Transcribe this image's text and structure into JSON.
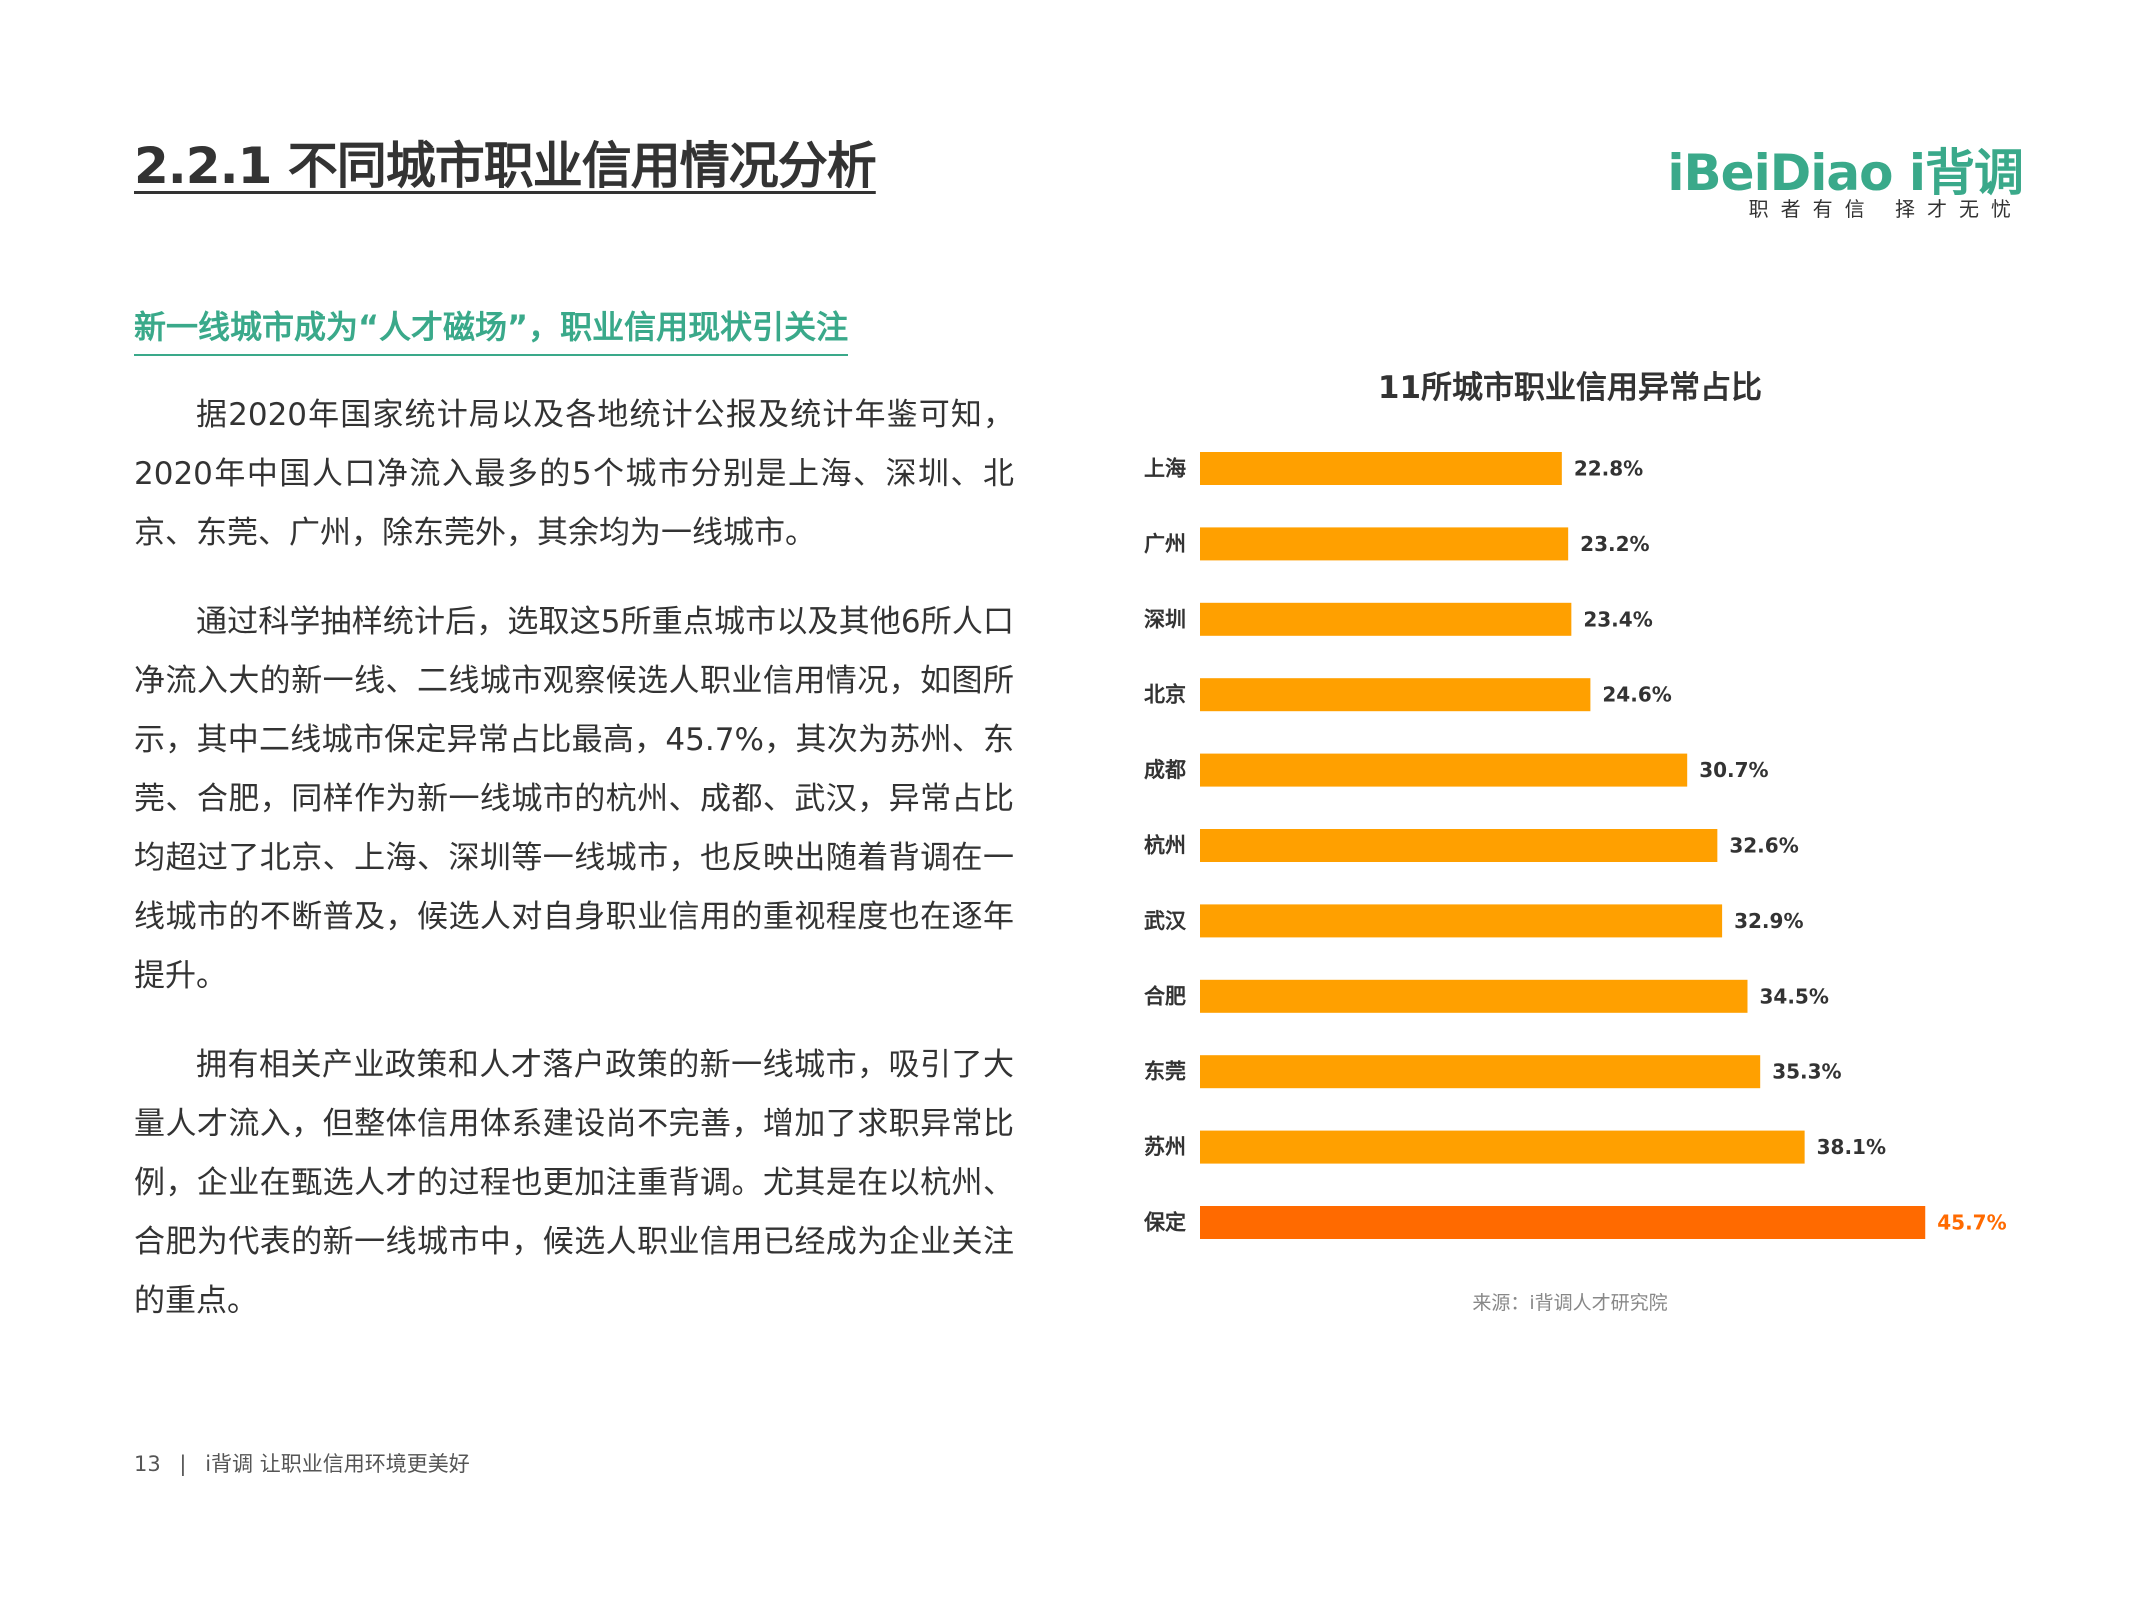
{
  "header": {
    "title": "2.2.1 不同城市职业信用情况分析",
    "logo_text": "iBeiDiao i背调",
    "logo_slogan": "职者有信 择才无忧"
  },
  "section": {
    "subtitle": "新一线城市成为“人才磁场”，职业信用现状引关注",
    "paragraphs": [
      "据2020年国家统计局以及各地统计公报及统计年鉴可知，2020年中国人口净流入最多的5个城市分别是上海、深圳、北京、东莞、广州，除东莞外，其余均为一线城市。",
      "通过科学抽样统计后，选取这5所重点城市以及其他6所人口净流入大的新一线、二线城市观察候选人职业信用情况，如图所示，其中二线城市保定异常占比最高，45.7%，其次为苏州、东莞、合肥，同样作为新一线城市的杭州、成都、武汉，异常占比均超过了北京、上海、深圳等一线城市，也反映出随着背调在一线城市的不断普及，候选人对自身职业信用的重视程度也在逐年提升。",
      "拥有相关产业政策和人才落户政策的新一线城市，吸引了大量人才流入，但整体信用体系建设尚不完善，增加了求职异常比例，企业在甄选人才的过程也更加注重背调。尤其是在以杭州、合肥为代表的新一线城市中，候选人职业信用已经成为企业关注的重点。"
    ]
  },
  "chart_data": {
    "type": "bar",
    "orientation": "horizontal",
    "title": "11所城市职业信用异常占比",
    "categories": [
      "上海",
      "广州",
      "深圳",
      "北京",
      "成都",
      "杭州",
      "武汉",
      "合肥",
      "东莞",
      "苏州",
      "保定"
    ],
    "values": [
      22.8,
      23.2,
      23.4,
      24.6,
      30.7,
      32.6,
      32.9,
      34.5,
      35.3,
      38.1,
      45.7
    ],
    "labels": [
      "22.8%",
      "23.2%",
      "23.4%",
      "24.6%",
      "30.7%",
      "32.6%",
      "32.9%",
      "34.5%",
      "35.3%",
      "38.1%",
      "45.7%"
    ],
    "highlight_category": "保定",
    "xlim": [
      0,
      46
    ],
    "grid": false,
    "colors": {
      "bar": "#ffa000",
      "highlight": "#ff6a00",
      "label": "#333333"
    },
    "source": "来源：i背调人才研究院"
  },
  "footer": {
    "page_number": "13",
    "separator": "|",
    "tagline": "i背调  让职业信用环境更美好"
  }
}
